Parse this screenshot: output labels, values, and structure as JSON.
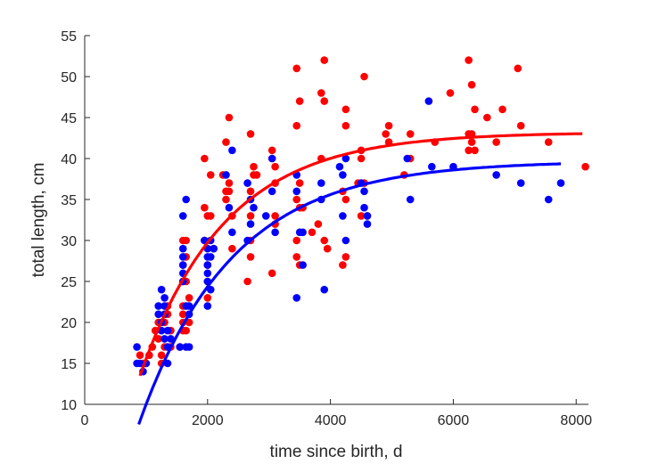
{
  "chart_data": {
    "type": "scatter",
    "xlabel": "time since birth, d",
    "ylabel": "total length, cm",
    "xlim": [
      0,
      8200
    ],
    "ylim": [
      10,
      55
    ],
    "xticks": [
      0,
      2000,
      4000,
      6000,
      8000
    ],
    "yticks": [
      10,
      15,
      20,
      25,
      30,
      35,
      40,
      45,
      50,
      55
    ],
    "grid": false,
    "legend": "none",
    "series": [
      {
        "color": "#ff0000",
        "points": [
          [
            900,
            16
          ],
          [
            950,
            15
          ],
          [
            1000,
            15
          ],
          [
            1050,
            16
          ],
          [
            1100,
            17
          ],
          [
            1150,
            19
          ],
          [
            1200,
            20
          ],
          [
            1200,
            18
          ],
          [
            1250,
            15
          ],
          [
            1250,
            16
          ],
          [
            1300,
            17
          ],
          [
            1300,
            20
          ],
          [
            1350,
            21
          ],
          [
            1350,
            22
          ],
          [
            1400,
            19
          ],
          [
            1400,
            17
          ],
          [
            1550,
            17
          ],
          [
            1600,
            19
          ],
          [
            1600,
            20
          ],
          [
            1600,
            21
          ],
          [
            1600,
            22
          ],
          [
            1600,
            25
          ],
          [
            1600,
            27
          ],
          [
            1600,
            30
          ],
          [
            1650,
            30
          ],
          [
            1650,
            28
          ],
          [
            1650,
            25
          ],
          [
            1700,
            23
          ],
          [
            1700,
            20
          ],
          [
            1650,
            19
          ],
          [
            1950,
            40
          ],
          [
            1950,
            34
          ],
          [
            1950,
            30
          ],
          [
            2000,
            27
          ],
          [
            2000,
            25
          ],
          [
            2000,
            23
          ],
          [
            2000,
            33
          ],
          [
            2050,
            33
          ],
          [
            2050,
            38
          ],
          [
            2100,
            29
          ],
          [
            2250,
            38
          ],
          [
            2300,
            36
          ],
          [
            2300,
            35
          ],
          [
            2300,
            42
          ],
          [
            2350,
            45
          ],
          [
            2350,
            37
          ],
          [
            2350,
            36
          ],
          [
            2400,
            33
          ],
          [
            2400,
            29
          ],
          [
            2650,
            25
          ],
          [
            2700,
            28
          ],
          [
            2700,
            30
          ],
          [
            2700,
            33
          ],
          [
            2700,
            36
          ],
          [
            2750,
            38
          ],
          [
            2750,
            39
          ],
          [
            2800,
            38
          ],
          [
            2700,
            43
          ],
          [
            3050,
            41
          ],
          [
            3050,
            40
          ],
          [
            3100,
            37
          ],
          [
            3100,
            39
          ],
          [
            3100,
            33
          ],
          [
            3100,
            32
          ],
          [
            3050,
            26
          ],
          [
            3450,
            51
          ],
          [
            3450,
            44
          ],
          [
            3500,
            47
          ],
          [
            3500,
            37
          ],
          [
            3450,
            30
          ],
          [
            3450,
            28
          ],
          [
            3500,
            27
          ],
          [
            3500,
            34
          ],
          [
            3550,
            34
          ],
          [
            3450,
            35
          ],
          [
            3850,
            48
          ],
          [
            3900,
            47
          ],
          [
            3900,
            52
          ],
          [
            3850,
            40
          ],
          [
            3900,
            30
          ],
          [
            3950,
            29
          ],
          [
            3800,
            32
          ],
          [
            3700,
            31
          ],
          [
            4200,
            27
          ],
          [
            4250,
            28
          ],
          [
            4250,
            35
          ],
          [
            4250,
            44
          ],
          [
            4250,
            46
          ],
          [
            4200,
            36
          ],
          [
            4550,
            50
          ],
          [
            4500,
            41
          ],
          [
            4500,
            40
          ],
          [
            4450,
            37
          ],
          [
            4500,
            33
          ],
          [
            4600,
            33
          ],
          [
            4550,
            37
          ],
          [
            4900,
            43
          ],
          [
            4950,
            44
          ],
          [
            4950,
            42
          ],
          [
            5200,
            38
          ],
          [
            5300,
            43
          ],
          [
            5300,
            40
          ],
          [
            5700,
            42
          ],
          [
            5950,
            48
          ],
          [
            6250,
            52
          ],
          [
            6300,
            49
          ],
          [
            6350,
            46
          ],
          [
            6250,
            43
          ],
          [
            6300,
            43
          ],
          [
            6300,
            42
          ],
          [
            6350,
            41
          ],
          [
            6250,
            41
          ],
          [
            6550,
            45
          ],
          [
            6700,
            42
          ],
          [
            6800,
            46
          ],
          [
            7050,
            51
          ],
          [
            7100,
            44
          ],
          [
            7550,
            42
          ],
          [
            8150,
            39
          ]
        ]
      },
      {
        "color": "#0000ff",
        "points": [
          [
            850,
            17
          ],
          [
            850,
            15
          ],
          [
            900,
            15
          ],
          [
            950,
            14
          ],
          [
            1000,
            15
          ],
          [
            1200,
            21
          ],
          [
            1200,
            22
          ],
          [
            1250,
            20
          ],
          [
            1250,
            24
          ],
          [
            1250,
            19
          ],
          [
            1300,
            23
          ],
          [
            1300,
            22
          ],
          [
            1300,
            21
          ],
          [
            1300,
            18
          ],
          [
            1350,
            19
          ],
          [
            1350,
            17
          ],
          [
            1350,
            15
          ],
          [
            1400,
            18
          ],
          [
            1550,
            17
          ],
          [
            1600,
            25
          ],
          [
            1600,
            26
          ],
          [
            1600,
            27
          ],
          [
            1600,
            28
          ],
          [
            1600,
            29
          ],
          [
            1600,
            33
          ],
          [
            1650,
            35
          ],
          [
            1650,
            22
          ],
          [
            1700,
            22
          ],
          [
            1700,
            21
          ],
          [
            1650,
            17
          ],
          [
            1700,
            17
          ],
          [
            1950,
            30
          ],
          [
            2000,
            29
          ],
          [
            2000,
            28
          ],
          [
            2000,
            27
          ],
          [
            2000,
            26
          ],
          [
            2000,
            25
          ],
          [
            2050,
            24
          ],
          [
            2000,
            22
          ],
          [
            2050,
            30
          ],
          [
            2100,
            29
          ],
          [
            2050,
            28
          ],
          [
            2300,
            38
          ],
          [
            2350,
            34
          ],
          [
            2400,
            41
          ],
          [
            2400,
            31
          ],
          [
            2650,
            37
          ],
          [
            2650,
            30
          ],
          [
            2700,
            35
          ],
          [
            2700,
            32
          ],
          [
            2750,
            34
          ],
          [
            2950,
            33
          ],
          [
            3050,
            40
          ],
          [
            3050,
            36
          ],
          [
            3100,
            31
          ],
          [
            3450,
            38
          ],
          [
            3450,
            36
          ],
          [
            3450,
            23
          ],
          [
            3500,
            31
          ],
          [
            3550,
            31
          ],
          [
            3550,
            27
          ],
          [
            3850,
            35
          ],
          [
            3850,
            37
          ],
          [
            3900,
            24
          ],
          [
            4150,
            39
          ],
          [
            4200,
            38
          ],
          [
            4200,
            33
          ],
          [
            4250,
            30
          ],
          [
            4250,
            40
          ],
          [
            4500,
            37
          ],
          [
            4550,
            36
          ],
          [
            4550,
            34
          ],
          [
            4600,
            33
          ],
          [
            4600,
            32
          ],
          [
            5250,
            40
          ],
          [
            5300,
            35
          ],
          [
            5600,
            47
          ],
          [
            5650,
            39
          ],
          [
            6000,
            39
          ],
          [
            6700,
            38
          ],
          [
            7100,
            37
          ],
          [
            7550,
            35
          ],
          [
            7750,
            37
          ]
        ]
      }
    ],
    "curves": [
      {
        "color": "#ff0000",
        "model": "von Bertalanffy",
        "Linf": 43.2,
        "k": 0.00072,
        "t0": 380,
        "x_range": [
          900,
          8100
        ]
      },
      {
        "color": "#0000ff",
        "model": "von Bertalanffy",
        "Linf": 39.7,
        "k": 0.00066,
        "t0": 560,
        "x_range": [
          880,
          7750
        ]
      }
    ]
  }
}
